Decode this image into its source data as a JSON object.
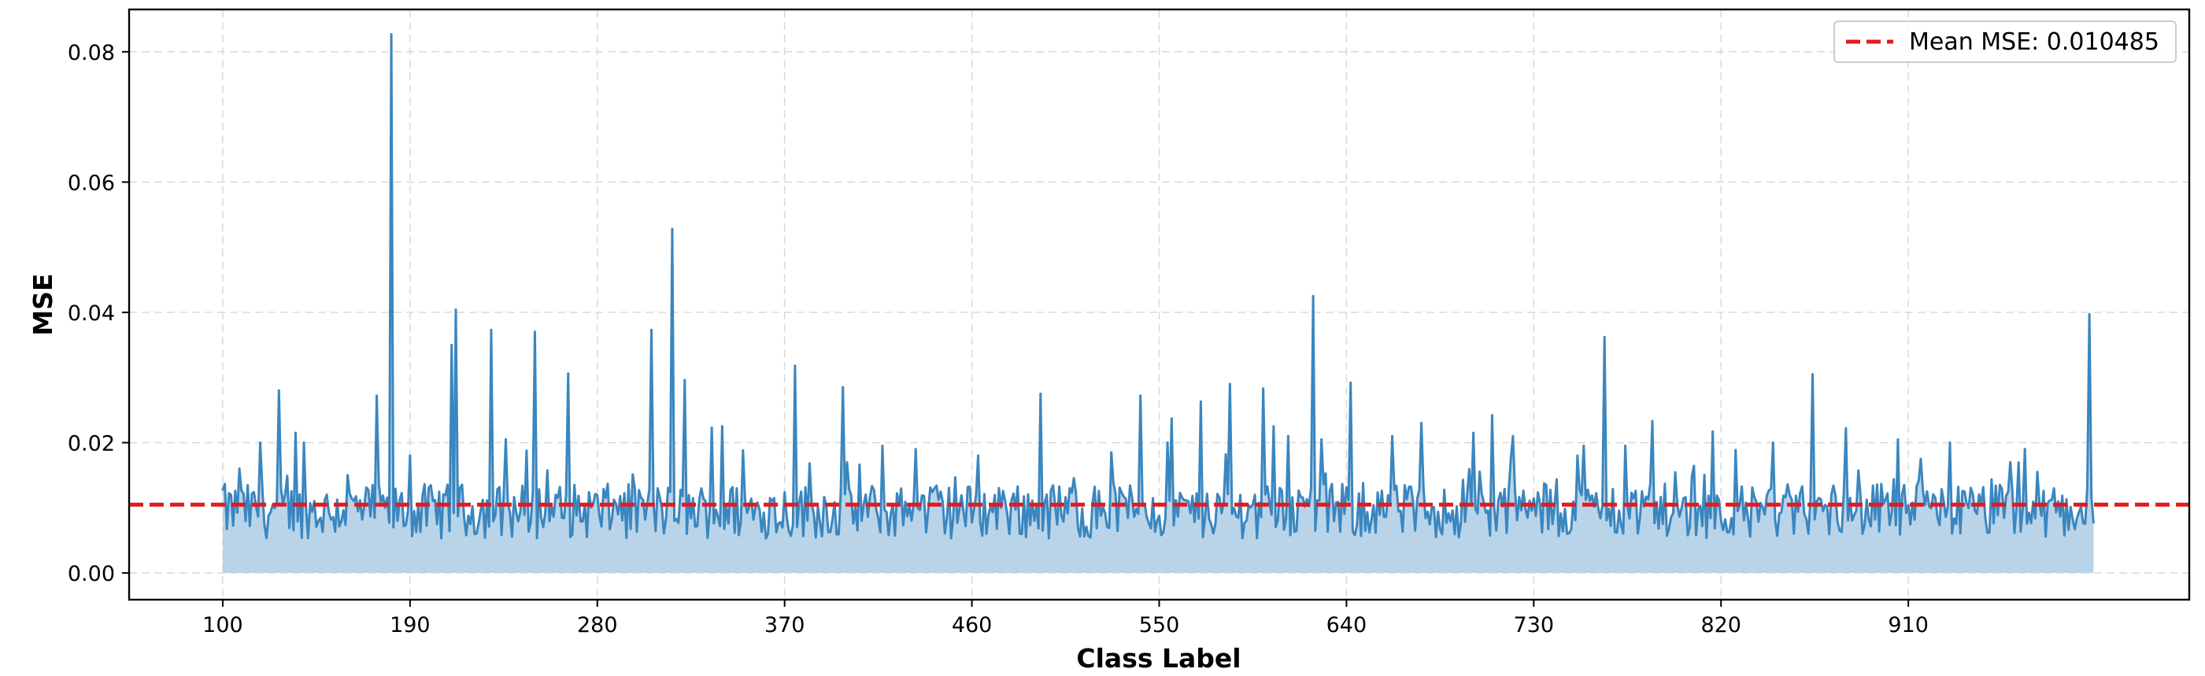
{
  "chart_data": {
    "type": "line",
    "xlabel": "Class Label",
    "ylabel": "MSE",
    "x_ticks": [
      100,
      190,
      280,
      370,
      460,
      550,
      640,
      730,
      820,
      910
    ],
    "y_ticks": [
      0.0,
      0.02,
      0.04,
      0.06,
      0.08
    ],
    "y_tick_labels": [
      "0.00",
      "0.02",
      "0.04",
      "0.06",
      "0.08"
    ],
    "xlim": [
      55,
      1045
    ],
    "ylim": [
      -0.0041,
      0.0865
    ],
    "x_range": [
      100,
      999
    ],
    "grid": true,
    "legend_position": "top-right",
    "mean_line": {
      "value": 0.010485,
      "label": "Mean MSE: 0.010485",
      "color": "#e31a1c",
      "style": "dashed"
    },
    "series": [
      {
        "color": "#3a86bf",
        "fill_color": "#b9d4e9",
        "baseline": 0.0,
        "seed": 12345,
        "base_level": 0.0095,
        "noise_amplitude": 0.0042,
        "spikes": [
          [
            100,
            0.0128
          ],
          [
            108,
            0.016
          ],
          [
            118,
            0.02
          ],
          [
            127,
            0.028
          ],
          [
            135,
            0.0215
          ],
          [
            139,
            0.02
          ],
          [
            160,
            0.015
          ],
          [
            174,
            0.0272
          ],
          [
            181,
            0.0827
          ],
          [
            190,
            0.018
          ],
          [
            210,
            0.035
          ],
          [
            212,
            0.0404
          ],
          [
            229,
            0.0373
          ],
          [
            236,
            0.0205
          ],
          [
            250,
            0.037
          ],
          [
            266,
            0.0306
          ],
          [
            306,
            0.0373
          ],
          [
            316,
            0.0528
          ],
          [
            322,
            0.0296
          ],
          [
            335,
            0.0223
          ],
          [
            340,
            0.0225
          ],
          [
            350,
            0.0188
          ],
          [
            375,
            0.0318
          ],
          [
            398,
            0.0285
          ],
          [
            417,
            0.0195
          ],
          [
            433,
            0.019
          ],
          [
            463,
            0.018
          ],
          [
            493,
            0.0275
          ],
          [
            527,
            0.0185
          ],
          [
            541,
            0.0272
          ],
          [
            554,
            0.02
          ],
          [
            556,
            0.0237
          ],
          [
            570,
            0.0263
          ],
          [
            584,
            0.029
          ],
          [
            600,
            0.0283
          ],
          [
            605,
            0.0225
          ],
          [
            612,
            0.021
          ],
          [
            624,
            0.0425
          ],
          [
            628,
            0.0205
          ],
          [
            642,
            0.0292
          ],
          [
            662,
            0.021
          ],
          [
            676,
            0.023
          ],
          [
            701,
            0.0215
          ],
          [
            710,
            0.0242
          ],
          [
            720,
            0.021
          ],
          [
            751,
            0.018
          ],
          [
            754,
            0.0195
          ],
          [
            764,
            0.0362
          ],
          [
            774,
            0.0195
          ],
          [
            787,
            0.0233
          ],
          [
            816,
            0.0217
          ],
          [
            845,
            0.02
          ],
          [
            864,
            0.0305
          ],
          [
            880,
            0.0222
          ],
          [
            905,
            0.0205
          ],
          [
            916,
            0.0175
          ],
          [
            930,
            0.02
          ],
          [
            966,
            0.019
          ],
          [
            997,
            0.0397
          ]
        ]
      }
    ]
  }
}
